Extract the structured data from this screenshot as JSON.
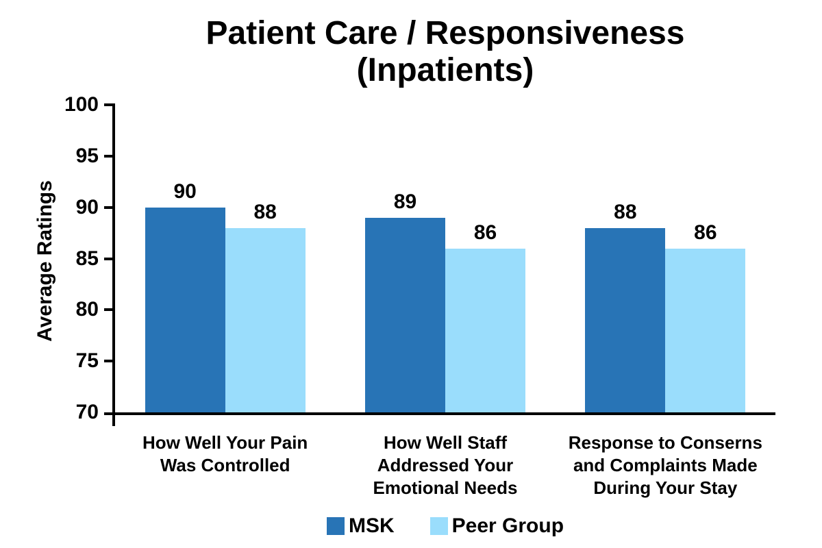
{
  "chart_data": {
    "type": "bar",
    "title_line1": "Patient Care / Responsiveness",
    "title_line2": "(Inpatients)",
    "ylabel": "Average Ratings",
    "xlabel": "",
    "ylim": [
      70,
      100
    ],
    "yticks": [
      100,
      95,
      90,
      85,
      80,
      75,
      70
    ],
    "grid": false,
    "legend_position": "bottom",
    "categories": [
      "How Well Your Pain Was Controlled",
      "How Well Staff Addressed Your Emotional Needs",
      "Response to Conserns and Complaints Made During Your Stay"
    ],
    "category_lines": [
      [
        "How Well Your Pain",
        "Was Controlled"
      ],
      [
        "How Well Staff",
        "Addressed Your",
        "Emotional Needs"
      ],
      [
        "Response to Conserns",
        "and Complaints Made",
        "During Your Stay"
      ]
    ],
    "series": [
      {
        "name": "MSK",
        "color": "#2874B6",
        "values": [
          90,
          89,
          88
        ]
      },
      {
        "name": "Peer Group",
        "color": "#9ADDFC",
        "values": [
          88,
          86,
          86
        ]
      }
    ]
  },
  "colors": {
    "axis": "#000000",
    "text": "#000000",
    "background": "#FFFFFF"
  }
}
